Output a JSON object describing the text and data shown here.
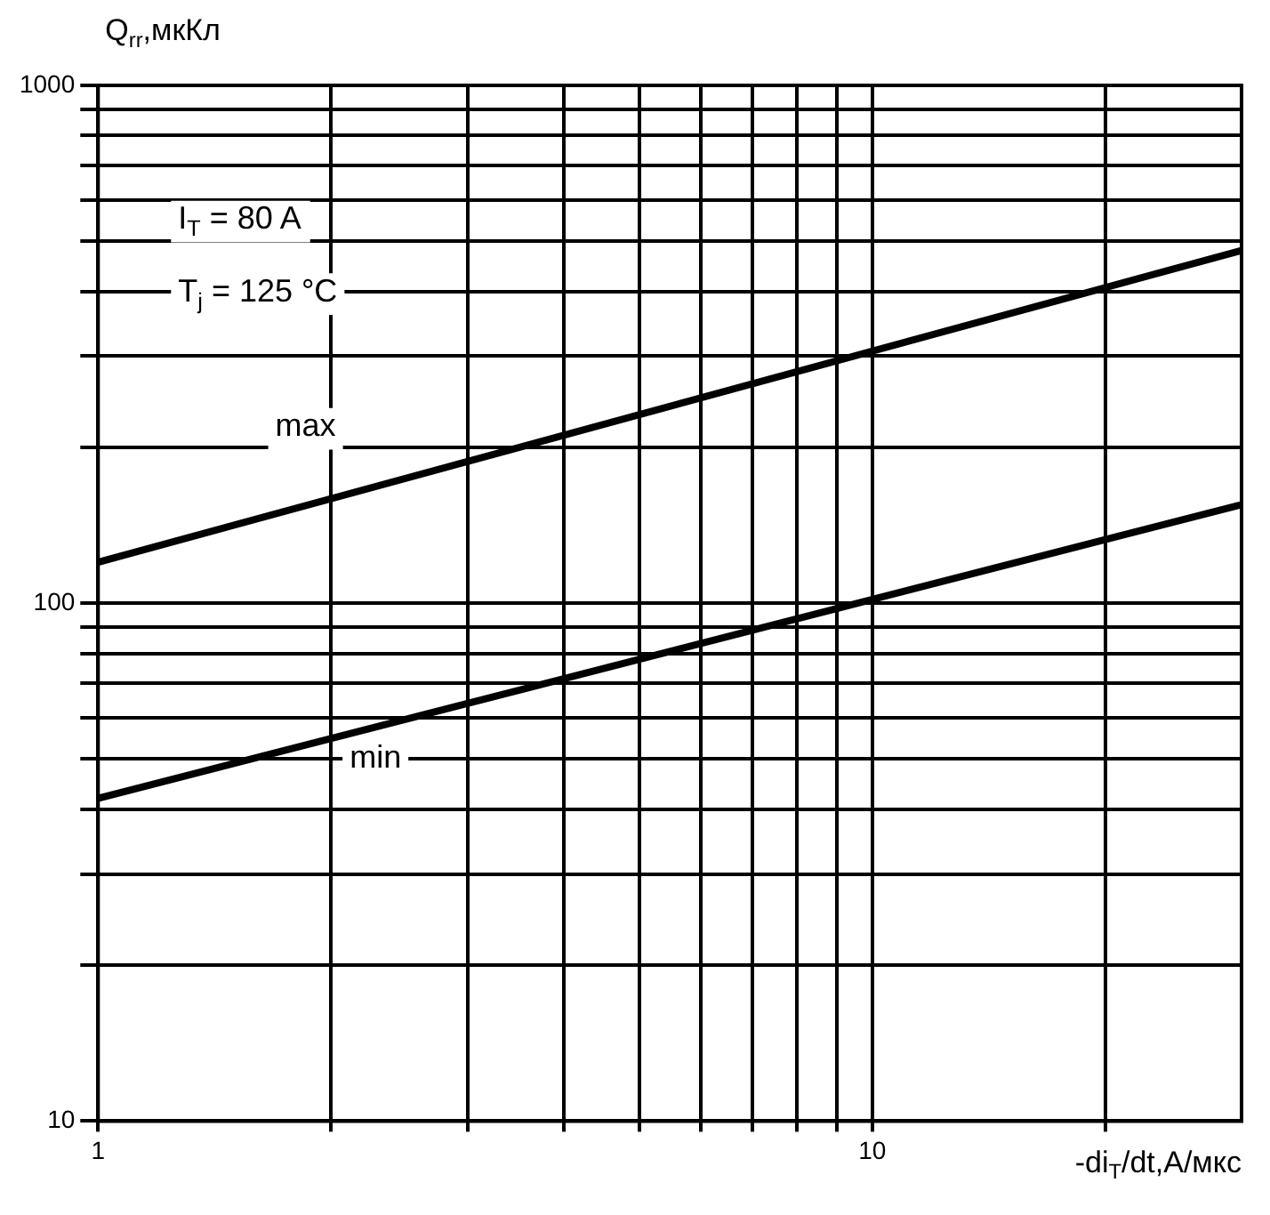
{
  "chart_data": {
    "type": "line",
    "xlabel": "-di$_{T}$/dt,А/мкс",
    "ylabel": "Q$_{rr}$,мкКл",
    "x": [
      1,
      30
    ],
    "series": [
      {
        "color": "#000000",
        "values": [
          120,
          480
        ]
      },
      {
        "color": "#000000",
        "values": [
          42,
          155
        ]
      }
    ],
    "xlim": [
      1,
      30
    ],
    "ylim": [
      10,
      1000
    ],
    "xticks": [
      1,
      {
        "value": 2,
        "label": null
      },
      {
        "value": 3,
        "label": null
      },
      {
        "value": 4,
        "label": null
      },
      {
        "value": 5,
        "label": null
      },
      {
        "value": 6,
        "label": null
      },
      {
        "value": 7,
        "label": null
      },
      {
        "value": 8,
        "label": null
      },
      {
        "value": 9,
        "label": null
      },
      10,
      {
        "value": 20,
        "label": null
      }
    ],
    "yticks": [
      10,
      {
        "value": 20,
        "label": null
      },
      {
        "value": 30,
        "label": null
      },
      {
        "value": 40,
        "label": null
      },
      {
        "value": 50,
        "label": null
      },
      {
        "value": 60,
        "label": null
      },
      {
        "value": 70,
        "label": null
      },
      {
        "value": 80,
        "label": null
      },
      {
        "value": 90,
        "label": null
      },
      100,
      {
        "value": 200,
        "label": null
      },
      {
        "value": 300,
        "label": null
      },
      {
        "value": 400,
        "label": null
      },
      {
        "value": 500,
        "label": null
      },
      {
        "value": 600,
        "label": null
      },
      {
        "value": 700,
        "label": null
      },
      {
        "value": 800,
        "label": null
      },
      {
        "value": 900,
        "label": null
      },
      1000
    ],
    "log": "xy",
    "grid": true,
    "legend": false,
    "marker": "none",
    "line_style": "solid",
    "annotations": [
      "I$_{T}$ = 80 A",
      "T$_{j}$ = 125 °C",
      "max",
      "min"
    ]
  }
}
